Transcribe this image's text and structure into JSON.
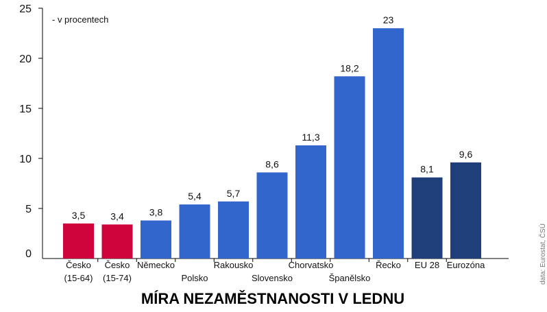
{
  "chart_data": {
    "type": "bar",
    "title": "MÍRA NEZAMĚSTNANOSTI V LEDNU",
    "unit_note": "- v procentech",
    "source": "data: Eurostat, ČSÚ",
    "ylim": [
      0,
      25
    ],
    "yticks": [
      0,
      5,
      10,
      15,
      20,
      25
    ],
    "grid": false,
    "categories": [
      [
        "Česko",
        "(15-64)"
      ],
      [
        "Česko",
        "(15-74)"
      ],
      [
        "Německo"
      ],
      [
        "Polsko"
      ],
      [
        "Rakousko"
      ],
      [
        "Slovensko"
      ],
      [
        "Chorvatsko"
      ],
      [
        "Španělsko"
      ],
      [
        "Řecko"
      ],
      [
        "EU 28"
      ],
      [
        "Eurozóna"
      ]
    ],
    "values": [
      3.5,
      3.4,
      3.8,
      5.4,
      5.7,
      8.6,
      11.3,
      18.2,
      23,
      8.1,
      9.6
    ],
    "value_labels": [
      "3,5",
      "3,4",
      "3,8",
      "5,4",
      "5,7",
      "8,6",
      "11,3",
      "18,2",
      "23",
      "8,1",
      "9,6"
    ],
    "bar_colors": [
      "#d0043c",
      "#d0043c",
      "#3366cc",
      "#3366cc",
      "#3366cc",
      "#3366cc",
      "#3366cc",
      "#3366cc",
      "#3366cc",
      "#1f3f7a",
      "#1f3f7a"
    ]
  }
}
